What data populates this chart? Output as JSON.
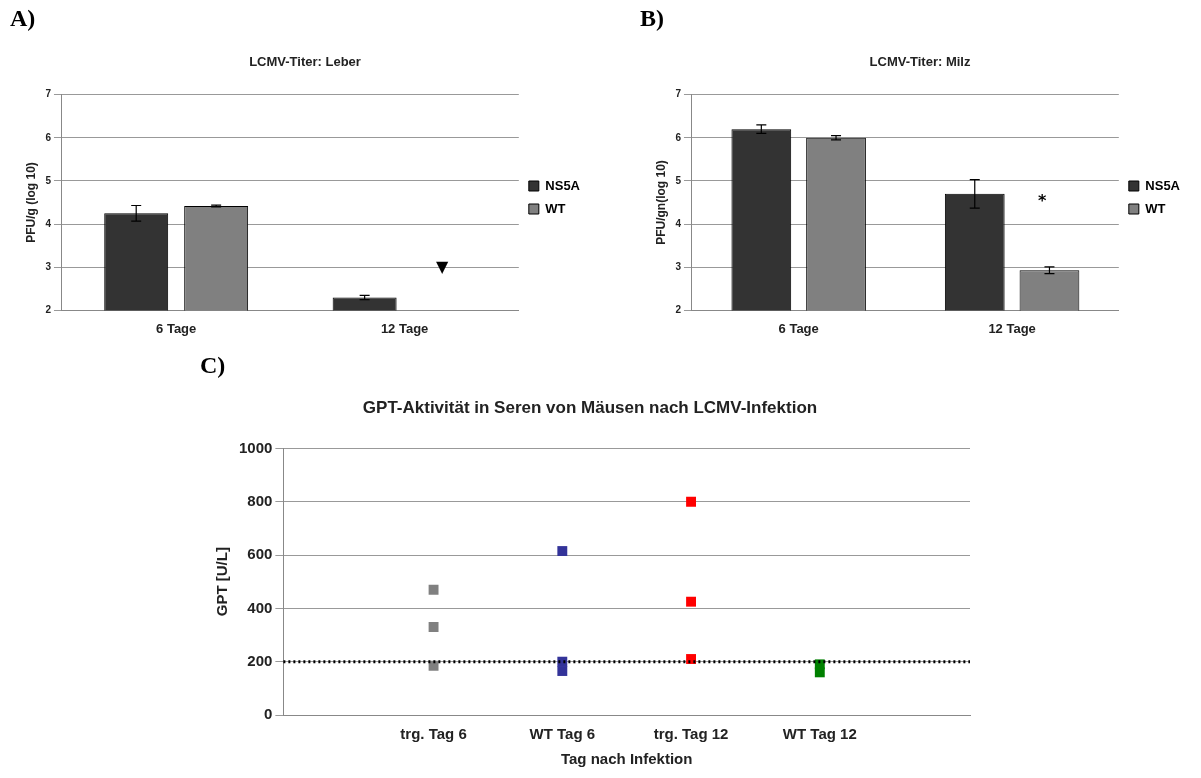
{
  "chart_data": [
    {
      "type": "bar",
      "title": "LCMV-Titer: Leber",
      "ylabel": "PFU/g (log 10)",
      "categories": [
        "6 Tage",
        "12 Tage"
      ],
      "series": [
        {
          "name": "NS5A",
          "color": "#333333",
          "values": [
            4.25,
            2.3
          ],
          "errors": [
            0.18,
            0.05
          ]
        },
        {
          "name": "WT",
          "color": "#808080",
          "values": [
            4.42,
            null
          ],
          "errors": [
            0.02,
            null
          ]
        }
      ],
      "ylim": [
        2,
        7
      ],
      "yticks": [
        2,
        3,
        4,
        5,
        6,
        7
      ],
      "grid": "y",
      "legend": "right",
      "annotations": [
        "A)",
        "▼"
      ]
    },
    {
      "type": "bar",
      "title": "LCMV-Titer: Milz",
      "ylabel": "PFU/gn(log 10)",
      "categories": [
        "6 Tage",
        "12 Tage"
      ],
      "series": [
        {
          "name": "NS5A",
          "color": "#333333",
          "values": [
            6.2,
            4.7
          ],
          "errors": [
            0.1,
            0.33
          ]
        },
        {
          "name": "WT",
          "color": "#808080",
          "values": [
            6.0,
            2.93
          ],
          "errors": [
            0.05,
            0.08
          ]
        }
      ],
      "ylim": [
        2,
        7
      ],
      "yticks": [
        2,
        3,
        4,
        5,
        6,
        7
      ],
      "grid": "y",
      "legend": "right",
      "annotations": [
        "B)",
        "*"
      ]
    },
    {
      "type": "scatter",
      "title": "GPT-Aktivität in Seren von Mäusen nach LCMV-Infektion",
      "xlabel": "Tag nach Infektion",
      "ylabel": "GPT [U/L]",
      "categories": [
        "trg. Tag 6",
        "WT Tag 6",
        "trg. Tag 12",
        "WT Tag 12"
      ],
      "series": [
        {
          "color": "#808080",
          "x": [
            "trg. Tag 6",
            "trg. Tag 6",
            "trg. Tag 6"
          ],
          "values": [
            470,
            330,
            185
          ]
        },
        {
          "color": "#333399",
          "x": [
            "WT Tag 6",
            "WT Tag 6",
            "WT Tag 6"
          ],
          "values": [
            615,
            200,
            165
          ]
        },
        {
          "color": "#ff0000",
          "x": [
            "trg. Tag 12",
            "trg. Tag 12",
            "trg. Tag 12"
          ],
          "values": [
            800,
            425,
            210
          ]
        },
        {
          "color": "#008000",
          "x": [
            "WT Tag 12",
            "WT Tag 12"
          ],
          "values": [
            190,
            160
          ]
        }
      ],
      "ylim": [
        0,
        1000
      ],
      "yticks": [
        0,
        200,
        400,
        600,
        800,
        1000
      ],
      "grid": "y",
      "legend": false,
      "marker": "square",
      "ref_lines": [
        {
          "axis": "y",
          "value": 200,
          "color": "#000000",
          "line_style": "dotted"
        }
      ],
      "annotations": [
        "C)"
      ]
    }
  ]
}
